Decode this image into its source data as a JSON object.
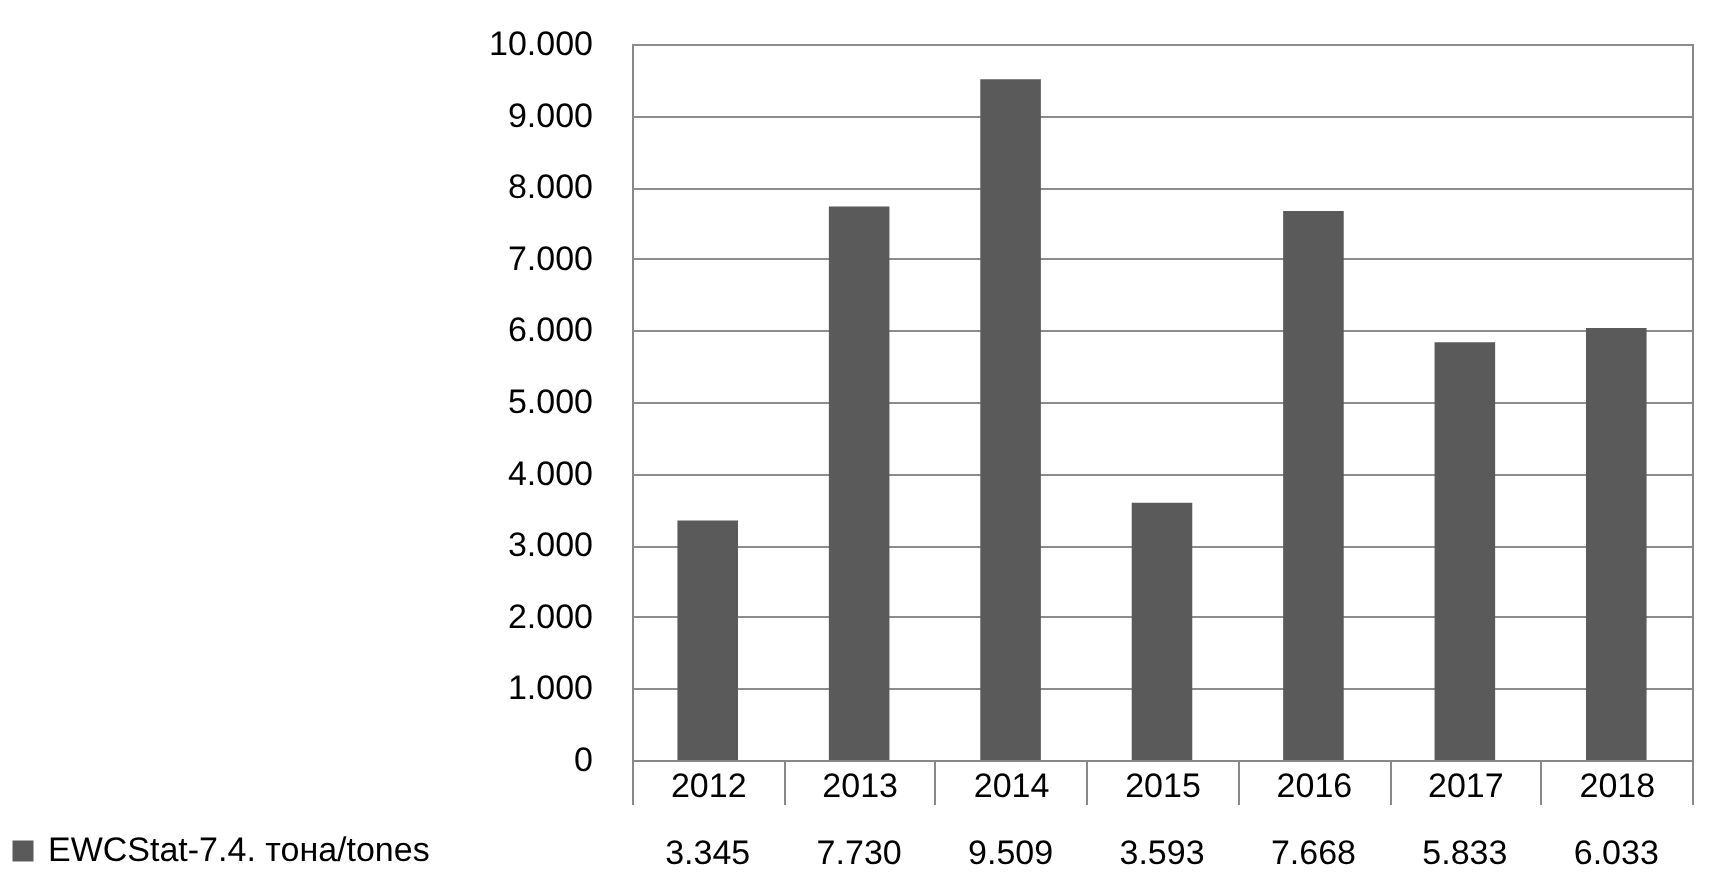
{
  "chart_data": {
    "type": "bar",
    "categories": [
      "2012",
      "2013",
      "2014",
      "2015",
      "2016",
      "2017",
      "2018"
    ],
    "series": [
      {
        "name": "EWCStat-7.4. тона/tones",
        "color": "#5a5a5a",
        "values": [
          3345,
          7730,
          9509,
          3593,
          7668,
          5833,
          6033
        ],
        "value_labels": [
          "3.345",
          "7.730",
          "9.509",
          "3.593",
          "7.668",
          "5.833",
          "6.033"
        ]
      }
    ],
    "ylim": [
      0,
      10000
    ],
    "yticks": [
      0,
      {
        "value": 1000,
        "label": "1.000"
      },
      {
        "value": 2000,
        "label": "2.000"
      },
      {
        "value": 3000,
        "label": "3.000"
      },
      {
        "value": 4000,
        "label": "4.000"
      },
      {
        "value": 5000,
        "label": "5.000"
      },
      {
        "value": 6000,
        "label": "6.000"
      },
      {
        "value": 7000,
        "label": "7.000"
      },
      {
        "value": 8000,
        "label": "8.000"
      },
      {
        "value": 9000,
        "label": "9.000"
      },
      {
        "value": 10000,
        "label": "10.000"
      }
    ],
    "grid": "y",
    "legend": "bottom"
  }
}
